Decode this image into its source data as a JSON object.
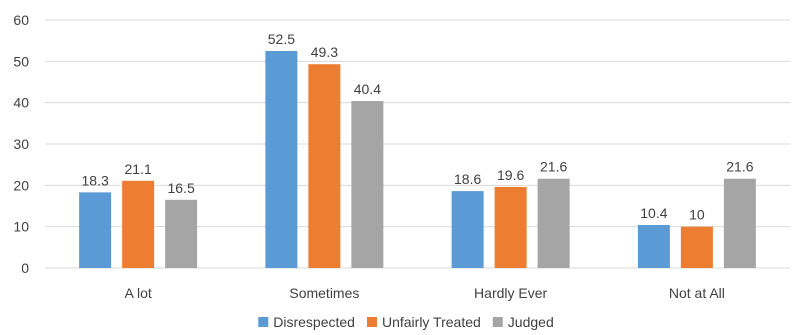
{
  "chart_data": {
    "type": "bar",
    "title": "",
    "xlabel": "",
    "ylabel": "",
    "ylim": [
      0,
      60
    ],
    "yticks": [
      0,
      10,
      20,
      30,
      40,
      50,
      60
    ],
    "grid": true,
    "legend_position": "bottom",
    "categories": [
      "A lot",
      "Sometimes",
      "Hardly Ever",
      "Not at All"
    ],
    "series": [
      {
        "name": "Disrespected",
        "color": "#5b9bd5",
        "values": [
          18.3,
          52.5,
          18.6,
          10.4
        ]
      },
      {
        "name": "Unfairly Treated",
        "color": "#ed7d31",
        "values": [
          21.1,
          49.3,
          19.6,
          10
        ]
      },
      {
        "name": "Judged",
        "color": "#a5a5a5",
        "values": [
          16.5,
          40.4,
          21.6,
          21.6
        ]
      }
    ]
  }
}
